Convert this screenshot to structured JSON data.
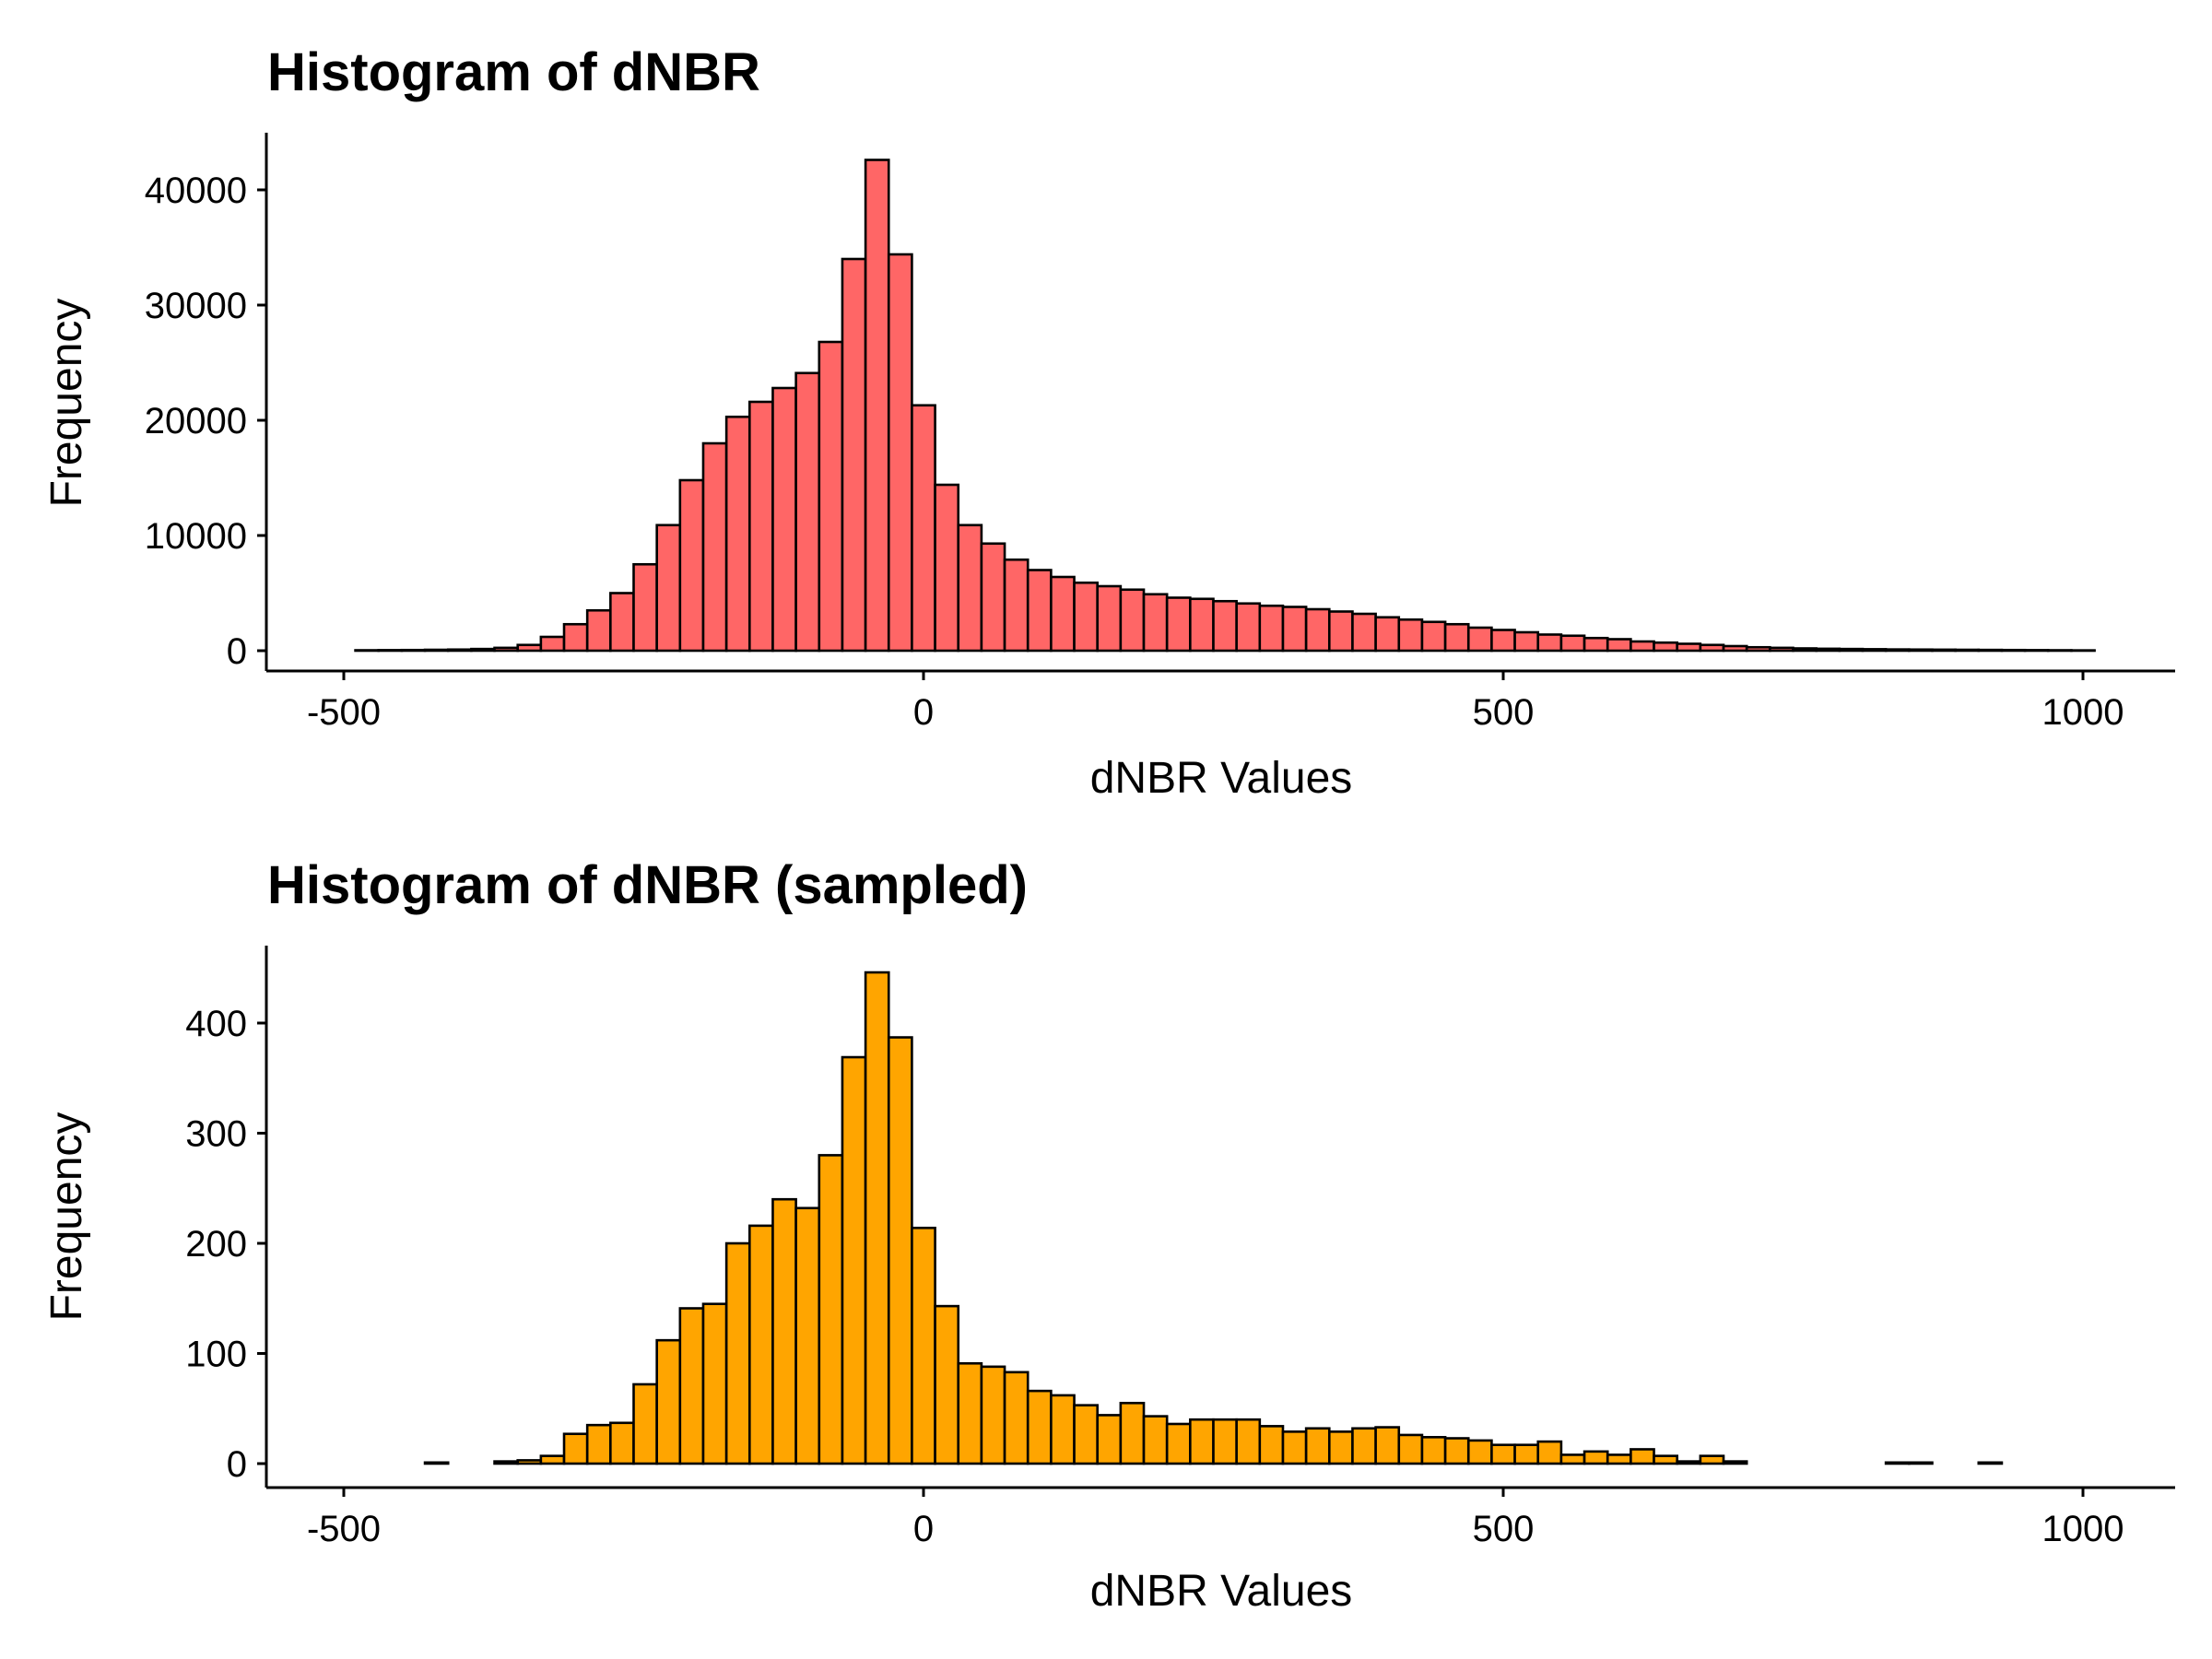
{
  "chart_data": [
    {
      "type": "bar",
      "title": "Histogram of dNBR",
      "xlabel": "dNBR Values",
      "ylabel": "Frequency",
      "xlim": [
        -500,
        1000
      ],
      "ylim": [
        0,
        45000
      ],
      "x_ticks": [
        -500,
        0,
        500,
        1000
      ],
      "x_tick_labels": [
        "-500",
        "0",
        "500",
        "1000"
      ],
      "y_ticks": [
        0,
        10000,
        20000,
        30000,
        40000
      ],
      "y_tick_labels": [
        "0",
        "10000",
        "20000",
        "30000",
        "40000"
      ],
      "bin_start": -490,
      "bin_width": 20,
      "fill": "#ff6666",
      "values": [
        40,
        50,
        60,
        80,
        100,
        150,
        250,
        500,
        1200,
        2300,
        3500,
        5000,
        7500,
        10900,
        14800,
        18000,
        20300,
        21600,
        22800,
        24100,
        26800,
        34000,
        42600,
        34400,
        21300,
        14400,
        10900,
        9300,
        7900,
        7000,
        6400,
        5900,
        5600,
        5300,
        4900,
        4600,
        4500,
        4300,
        4100,
        3900,
        3800,
        3600,
        3400,
        3200,
        2900,
        2700,
        2500,
        2300,
        2000,
        1800,
        1600,
        1400,
        1300,
        1100,
        1000,
        800,
        700,
        600,
        500,
        400,
        300,
        250,
        200,
        170,
        150,
        130,
        110,
        100,
        90,
        80,
        70,
        60,
        50,
        40,
        30
      ],
      "grid": false
    },
    {
      "type": "bar",
      "title": "Histogram of dNBR (sampled)",
      "xlabel": "dNBR Values",
      "ylabel": "Frequency",
      "xlim": [
        -500,
        1000
      ],
      "ylim": [
        0,
        470
      ],
      "x_ticks": [
        -500,
        0,
        500,
        1000
      ],
      "x_tick_labels": [
        "-500",
        "0",
        "500",
        "1000"
      ],
      "y_ticks": [
        0,
        100,
        200,
        300,
        400
      ],
      "y_tick_labels": [
        "0",
        "100",
        "200",
        "300",
        "400"
      ],
      "bin_start": -490,
      "bin_width": 20,
      "fill": "#ffa500",
      "values": [
        0,
        0,
        0,
        1,
        0,
        0,
        2,
        3,
        7,
        27,
        35,
        37,
        72,
        112,
        141,
        145,
        200,
        216,
        240,
        232,
        280,
        369,
        446,
        387,
        214,
        143,
        91,
        88,
        83,
        66,
        62,
        53,
        44,
        55,
        43,
        36,
        40,
        40,
        40,
        34,
        29,
        32,
        29,
        32,
        33,
        26,
        24,
        23,
        21,
        17,
        17,
        20,
        8,
        11,
        8,
        13,
        7,
        2,
        7,
        2,
        0,
        0,
        0,
        0,
        0,
        0,
        1,
        1,
        0,
        0,
        1,
        0,
        0,
        0,
        0
      ],
      "grid": false
    }
  ]
}
